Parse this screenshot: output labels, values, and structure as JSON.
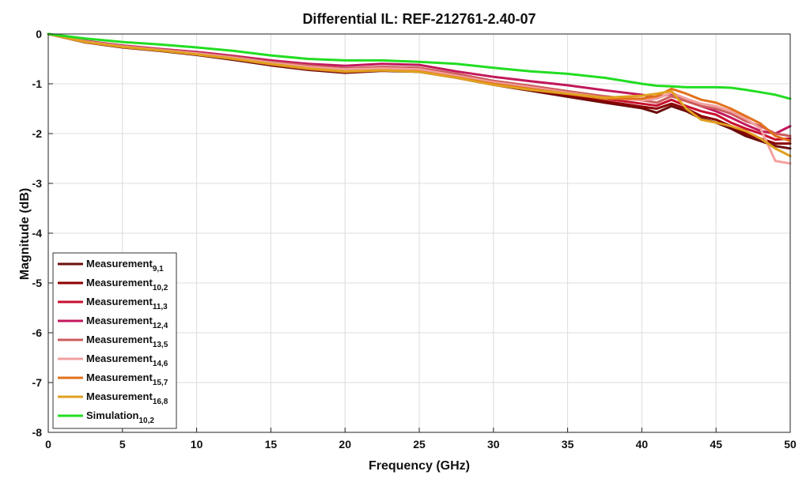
{
  "chart_data": {
    "type": "line",
    "title": "Differential IL: REF-212761-2.40-07",
    "xlabel": "Frequency (GHz)",
    "ylabel": "Magnitude (dB)",
    "xlim": [
      0,
      50
    ],
    "ylim": [
      -8,
      0
    ],
    "x_ticks": [
      "0",
      "5",
      "10",
      "15",
      "20",
      "25",
      "30",
      "35",
      "40",
      "45",
      "50"
    ],
    "y_ticks": [
      "0",
      "-1",
      "-2",
      "-3",
      "-4",
      "-5",
      "-6",
      "-7",
      "-8"
    ],
    "grid": true,
    "legend_position": "bottom-left",
    "x": [
      0,
      2.5,
      5,
      7.5,
      10,
      12.5,
      15,
      17.5,
      20,
      22.5,
      25,
      27.5,
      30,
      32.5,
      35,
      37.5,
      40,
      41,
      42,
      43,
      44,
      45,
      46,
      47,
      48,
      49,
      50
    ],
    "series": [
      {
        "name": "Measurement",
        "sub": "9,1",
        "color": "#6b0d0d",
        "values": [
          0,
          -0.17,
          -0.27,
          -0.34,
          -0.42,
          -0.52,
          -0.63,
          -0.72,
          -0.78,
          -0.74,
          -0.76,
          -0.88,
          -1.02,
          -1.14,
          -1.26,
          -1.38,
          -1.49,
          -1.58,
          -1.45,
          -1.55,
          -1.7,
          -1.78,
          -1.9,
          -2.05,
          -2.15,
          -2.25,
          -2.3
        ]
      },
      {
        "name": "Measurement",
        "sub": "10,2",
        "color": "#8b0000",
        "values": [
          0,
          -0.16,
          -0.25,
          -0.32,
          -0.4,
          -0.5,
          -0.6,
          -0.69,
          -0.75,
          -0.72,
          -0.74,
          -0.86,
          -1.0,
          -1.12,
          -1.23,
          -1.35,
          -1.46,
          -1.5,
          -1.4,
          -1.5,
          -1.65,
          -1.72,
          -1.85,
          -2.0,
          -2.1,
          -2.2,
          -2.2
        ]
      },
      {
        "name": "Measurement",
        "sub": "11,3",
        "color": "#c8102e",
        "values": [
          0,
          -0.15,
          -0.24,
          -0.31,
          -0.38,
          -0.47,
          -0.57,
          -0.65,
          -0.7,
          -0.68,
          -0.7,
          -0.82,
          -0.96,
          -1.08,
          -1.18,
          -1.3,
          -1.4,
          -1.44,
          -1.32,
          -1.45,
          -1.55,
          -1.62,
          -1.78,
          -1.9,
          -2.0,
          -2.12,
          -2.1
        ]
      },
      {
        "name": "Measurement",
        "sub": "12,4",
        "color": "#c2185b",
        "values": [
          0,
          -0.14,
          -0.23,
          -0.3,
          -0.36,
          -0.44,
          -0.53,
          -0.6,
          -0.64,
          -0.6,
          -0.62,
          -0.75,
          -0.86,
          -0.95,
          -1.03,
          -1.13,
          -1.22,
          -1.28,
          -1.2,
          -1.3,
          -1.45,
          -1.55,
          -1.68,
          -1.82,
          -1.95,
          -2.0,
          -1.85
        ]
      },
      {
        "name": "Measurement",
        "sub": "13,5",
        "color": "#cd5c5c",
        "values": [
          0,
          -0.15,
          -0.24,
          -0.31,
          -0.38,
          -0.46,
          -0.56,
          -0.63,
          -0.69,
          -0.66,
          -0.68,
          -0.8,
          -0.94,
          -1.04,
          -1.15,
          -1.25,
          -1.33,
          -1.38,
          -1.25,
          -1.35,
          -1.45,
          -1.5,
          -1.6,
          -1.75,
          -1.85,
          -2.0,
          -2.05
        ]
      },
      {
        "name": "Measurement",
        "sub": "14,6",
        "color": "#f2a0a0",
        "values": [
          0,
          -0.15,
          -0.25,
          -0.32,
          -0.39,
          -0.48,
          -0.58,
          -0.66,
          -0.71,
          -0.69,
          -0.71,
          -0.84,
          -0.97,
          -1.07,
          -1.18,
          -1.28,
          -1.33,
          -1.3,
          -1.18,
          -1.3,
          -1.4,
          -1.45,
          -1.55,
          -1.7,
          -1.9,
          -2.55,
          -2.6
        ]
      },
      {
        "name": "Measurement",
        "sub": "15,7",
        "color": "#e2711d",
        "values": [
          0,
          -0.16,
          -0.26,
          -0.33,
          -0.41,
          -0.5,
          -0.61,
          -0.7,
          -0.76,
          -0.73,
          -0.75,
          -0.87,
          -1.0,
          -1.1,
          -1.2,
          -1.3,
          -1.3,
          -1.25,
          -1.1,
          -1.2,
          -1.32,
          -1.38,
          -1.5,
          -1.65,
          -1.8,
          -2.05,
          -2.15
        ]
      },
      {
        "name": "Measurement",
        "sub": "16,8",
        "color": "#e0a020",
        "values": [
          0,
          -0.16,
          -0.26,
          -0.33,
          -0.41,
          -0.5,
          -0.6,
          -0.69,
          -0.75,
          -0.73,
          -0.76,
          -0.88,
          -1.02,
          -1.12,
          -1.2,
          -1.28,
          -1.24,
          -1.2,
          -1.15,
          -1.5,
          -1.72,
          -1.78,
          -1.85,
          -1.95,
          -2.1,
          -2.3,
          -2.45
        ]
      },
      {
        "name": "Simulation",
        "sub": "10,2",
        "color": "#22dd22",
        "values": [
          0,
          -0.09,
          -0.16,
          -0.21,
          -0.27,
          -0.34,
          -0.43,
          -0.5,
          -0.53,
          -0.53,
          -0.56,
          -0.6,
          -0.68,
          -0.75,
          -0.8,
          -0.88,
          -1.0,
          -1.04,
          -1.05,
          -1.07,
          -1.07,
          -1.07,
          -1.08,
          -1.12,
          -1.17,
          -1.22,
          -1.3
        ]
      }
    ]
  }
}
